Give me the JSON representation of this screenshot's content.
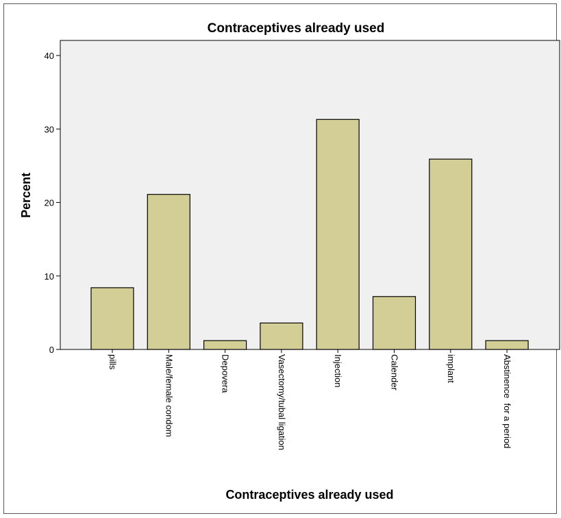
{
  "chart_data": {
    "type": "bar",
    "title": "Contraceptives already used",
    "xlabel": "Contraceptives already used",
    "ylabel": "Percent",
    "categories": [
      "pills",
      "Male/female condom",
      "Depovera",
      "Vasectomy/tubal ligation",
      "Injection",
      "Calender",
      "implant",
      "Abstinence  for a period"
    ],
    "values": [
      8.4,
      21.1,
      1.2,
      3.6,
      31.3,
      7.2,
      25.9,
      1.2
    ],
    "ylim": [
      0,
      40
    ],
    "yticks": [
      "0",
      "10",
      "20",
      "30",
      "40"
    ],
    "grid": false,
    "colors": {
      "bar": "#d3cd96",
      "plot_background": "#f0f0f0",
      "bar_edge": "#000000"
    }
  }
}
